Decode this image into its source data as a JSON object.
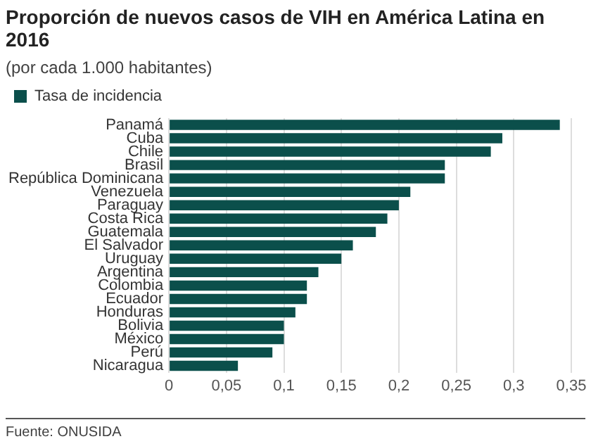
{
  "chart_data": {
    "type": "bar",
    "orientation": "horizontal",
    "title": "Proporción de nuevos casos de VIH en América Latina en 2016",
    "subtitle": "(por cada 1.000 habitantes)",
    "categories": [
      "Panamá",
      "Cuba",
      "Chile",
      "Brasil",
      "República Dominicana",
      "Venezuela",
      "Paraguay",
      "Costa Rica",
      "Guatemala",
      "El Salvador",
      "Uruguay",
      "Argentina",
      "Colombia",
      "Ecuador",
      "Honduras",
      "Bolivia",
      "México",
      "Perú",
      "Nicaragua"
    ],
    "series": [
      {
        "name": "Tasa de incidencia",
        "color": "#0b4f4b",
        "values": [
          0.34,
          0.29,
          0.28,
          0.24,
          0.24,
          0.21,
          0.2,
          0.19,
          0.18,
          0.16,
          0.15,
          0.13,
          0.12,
          0.12,
          0.11,
          0.1,
          0.1,
          0.09,
          0.06
        ]
      }
    ],
    "xlim": [
      0,
      0.35
    ],
    "xticks": [
      {
        "value": 0,
        "label": "0"
      },
      {
        "value": 0.05,
        "label": "0,05"
      },
      {
        "value": 0.1,
        "label": "0,1"
      },
      {
        "value": 0.15,
        "label": "0,15"
      },
      {
        "value": 0.2,
        "label": "0,2"
      },
      {
        "value": 0.25,
        "label": "0,25"
      },
      {
        "value": 0.3,
        "label": "0,3"
      },
      {
        "value": 0.35,
        "label": "0,35"
      }
    ],
    "grid": "x",
    "legend": "top left",
    "annotations": [
      "Fuente: ONUSIDA"
    ]
  }
}
